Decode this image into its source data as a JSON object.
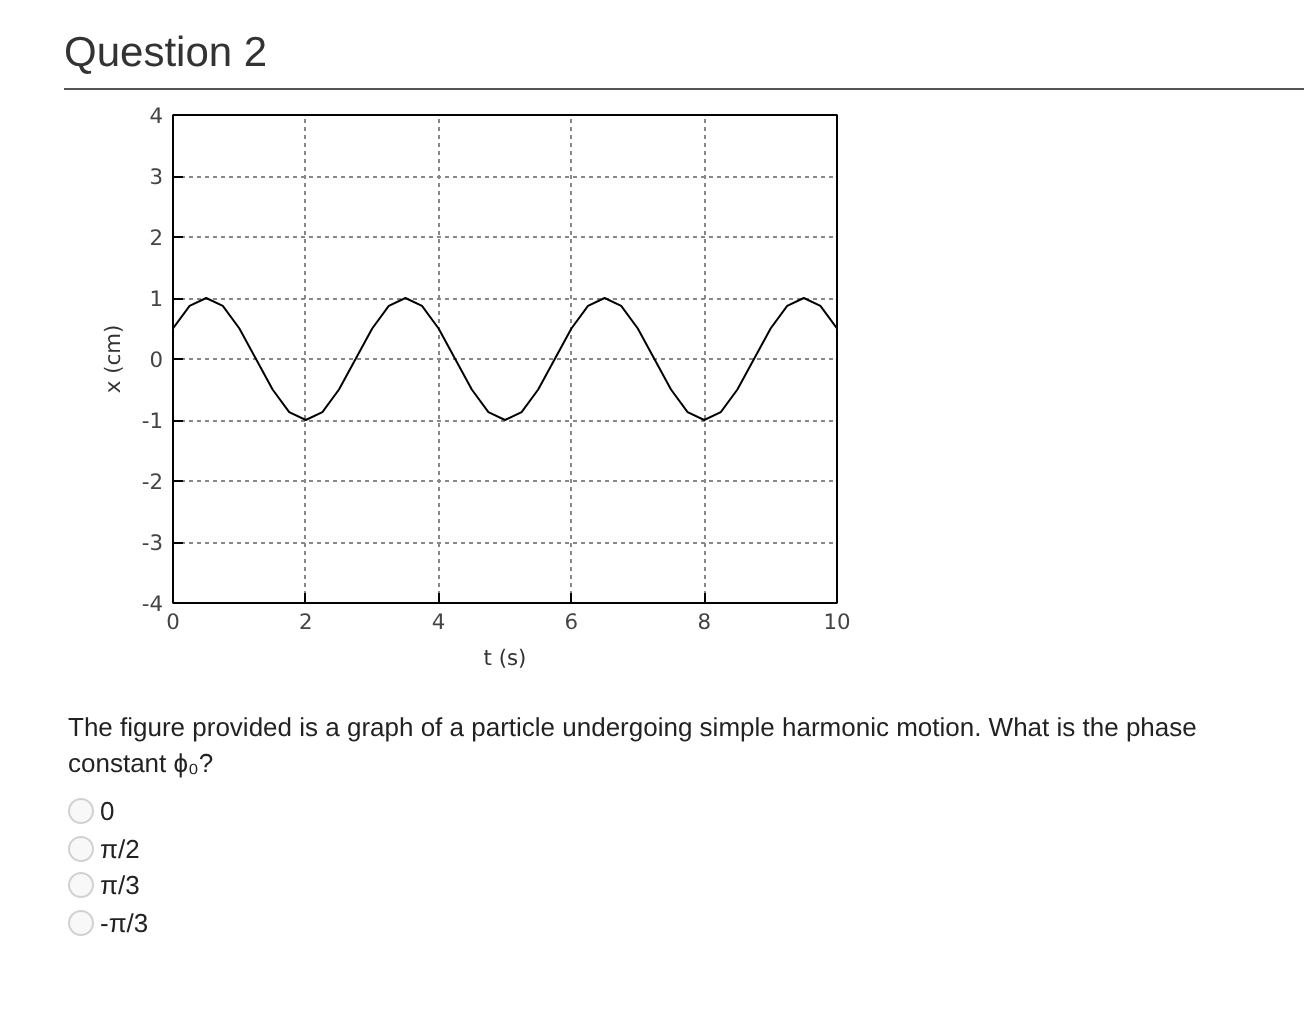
{
  "chart_data": {
    "type": "line",
    "title": "Question 2",
    "xlabel": "t (s)",
    "ylabel": "x (cm)",
    "x": [
      0,
      0.25,
      0.5,
      0.75,
      1,
      1.25,
      1.5,
      1.75,
      2,
      2.25,
      2.5,
      2.75,
      3,
      3.25,
      3.5,
      3.75,
      4,
      4.25,
      4.5,
      4.75,
      5,
      5.25,
      5.5,
      5.75,
      6,
      6.25,
      6.5,
      6.75,
      7,
      7.25,
      7.5,
      7.75,
      8,
      8.25,
      8.5,
      8.75,
      9,
      9.25,
      9.5,
      9.75,
      10
    ],
    "series": [
      {
        "color": "#000000",
        "values": [
          0.5,
          0.87,
          1,
          0.87,
          0.5,
          0,
          -0.5,
          -0.87,
          -1,
          -0.87,
          -0.5,
          0,
          0.5,
          0.87,
          1,
          0.87,
          0.5,
          0,
          -0.5,
          -0.87,
          -1,
          -0.87,
          -0.5,
          0,
          0.5,
          0.87,
          1,
          0.87,
          0.5,
          0,
          -0.5,
          -0.87,
          -1,
          -0.87,
          -0.5,
          0,
          0.5,
          0.87,
          1,
          0.87,
          0.5
        ]
      }
    ],
    "xlim": [
      0,
      10
    ],
    "xticks": [
      0,
      2,
      4,
      6,
      8,
      10
    ],
    "ylim": [
      -4,
      4
    ],
    "yticks": [
      -4,
      -3,
      -2,
      -1,
      0,
      1,
      2,
      3,
      4
    ],
    "grid": true,
    "line_style": "solid",
    "marker": "none",
    "annotations": [
      "The figure provided is a graph of a particle undergoing simple harmonic motion. What is the phase constant ϕ₀?",
      "0",
      "π/2",
      "π/3",
      "-π/3"
    ]
  }
}
